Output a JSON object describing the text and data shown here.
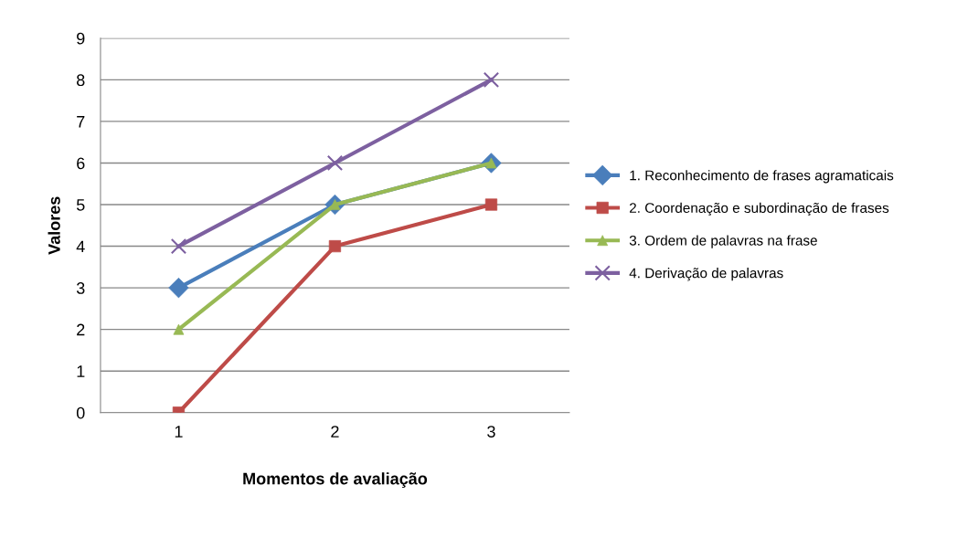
{
  "chart_data": {
    "type": "line",
    "xlabel": "Momentos de avaliação",
    "ylabel": "Valores",
    "categories": [
      "1",
      "2",
      "3"
    ],
    "series": [
      {
        "name": "1. Reconhecimento de frases agramaticais",
        "color": "#4a7ebb",
        "marker": "diamond",
        "values": [
          3,
          5,
          6
        ]
      },
      {
        "name": "2. Coordenação e subordinação de frases",
        "color": "#be4b48",
        "marker": "square",
        "values": [
          0,
          4,
          5
        ]
      },
      {
        "name": "3. Ordem de palavras na frase",
        "color": "#98b954",
        "marker": "triangle",
        "values": [
          2,
          5,
          6
        ]
      },
      {
        "name": "4. Derivação de palavras",
        "color": "#7d60a0",
        "marker": "cross",
        "values": [
          4,
          6,
          8
        ]
      }
    ],
    "ylim": [
      0,
      9
    ],
    "yticks": [
      0,
      1,
      2,
      3,
      4,
      5,
      6,
      7,
      8,
      9
    ],
    "grid": "y",
    "legend": "right"
  }
}
